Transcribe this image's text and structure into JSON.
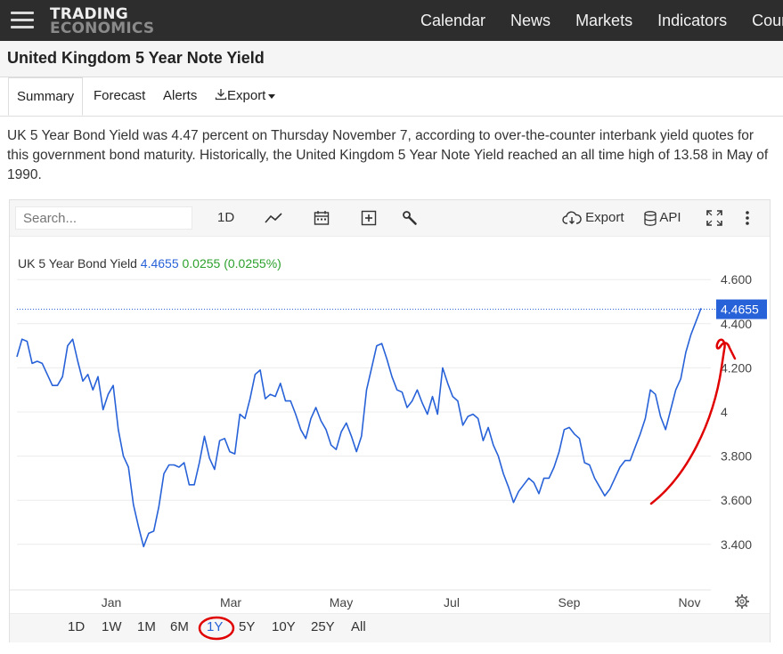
{
  "nav": {
    "logo_line1": "TRADING",
    "logo_line2": "ECONOMICS",
    "links": [
      "Calendar",
      "News",
      "Markets",
      "Indicators",
      "Countries"
    ]
  },
  "page": {
    "title": "United Kingdom 5 Year Note Yield",
    "tabs": [
      "Summary",
      "Forecast",
      "Alerts",
      "Export"
    ],
    "active_tab": "Summary",
    "summary": "UK 5 Year Bond Yield was 4.47 percent on Thursday November 7, according to over-the-counter interbank yield quotes for this government bond maturity. Historically, the United Kingdom 5 Year Note Yield reached an all time high of 13.58 in May of 1990."
  },
  "toolbar": {
    "search_placeholder": "Search...",
    "interval_label": "1D",
    "export_label": "Export",
    "api_label": "API",
    "icons": [
      "line-chart-icon",
      "calendar-icon",
      "plus-box-icon",
      "wrench-icon",
      "cloud-download-icon",
      "database-icon",
      "fullscreen-icon",
      "more-vertical-icon"
    ]
  },
  "series_label": {
    "name": "UK 5 Year Bond Yield",
    "value": "4.4655",
    "change": "0.0255 (0.0255%)"
  },
  "chart_data": {
    "type": "line",
    "title": "",
    "xlabel": "",
    "ylabel": "",
    "x_ticks": [
      "Jan",
      "Mar",
      "May",
      "Jul",
      "Sep",
      "Nov"
    ],
    "y_ticks": [
      "3.400",
      "3.600",
      "3.800",
      "4",
      "4.200",
      "4.400",
      "4.600"
    ],
    "ylim": [
      3.2,
      4.8
    ],
    "grid": true,
    "last_value_badge": "4.4655",
    "series": [
      {
        "name": "UK 5 Year Bond Yield",
        "color": "#2862d8",
        "values": [
          4.25,
          4.33,
          4.32,
          4.22,
          4.23,
          4.22,
          4.17,
          4.12,
          4.12,
          4.16,
          4.3,
          4.33,
          4.23,
          4.14,
          4.17,
          4.1,
          4.16,
          4.01,
          4.08,
          4.12,
          3.92,
          3.8,
          3.75,
          3.58,
          3.48,
          3.39,
          3.45,
          3.46,
          3.57,
          3.72,
          3.76,
          3.76,
          3.75,
          3.77,
          3.67,
          3.67,
          3.77,
          3.89,
          3.79,
          3.74,
          3.87,
          3.88,
          3.82,
          3.81,
          3.99,
          3.97,
          4.06,
          4.17,
          4.19,
          4.06,
          4.08,
          4.07,
          4.13,
          4.05,
          4.05,
          3.99,
          3.92,
          3.88,
          3.97,
          4.02,
          3.96,
          3.92,
          3.85,
          3.83,
          3.91,
          3.95,
          3.89,
          3.82,
          3.89,
          4.1,
          4.2,
          4.3,
          4.31,
          4.24,
          4.16,
          4.1,
          4.09,
          4.02,
          4.05,
          4.1,
          4.04,
          3.99,
          4.07,
          3.99,
          4.2,
          4.13,
          4.07,
          4.05,
          3.94,
          3.98,
          3.99,
          3.97,
          3.87,
          3.93,
          3.85,
          3.8,
          3.72,
          3.66,
          3.59,
          3.64,
          3.67,
          3.7,
          3.68,
          3.63,
          3.7,
          3.7,
          3.75,
          3.82,
          3.92,
          3.93,
          3.9,
          3.88,
          3.77,
          3.76,
          3.7,
          3.66,
          3.62,
          3.65,
          3.7,
          3.75,
          3.78,
          3.78,
          3.84,
          3.9,
          3.97,
          4.1,
          4.08,
          3.98,
          3.92,
          4.01,
          4.1,
          4.15,
          4.27,
          4.35,
          4.41,
          4.47
        ]
      }
    ]
  },
  "ranges": {
    "items": [
      "1D",
      "1W",
      "1M",
      "6M",
      "1Y",
      "5Y",
      "10Y",
      "25Y",
      "All"
    ],
    "active": "1Y"
  },
  "colors": {
    "line": "#2862d8",
    "annotation": "#e00000",
    "positive": "#2ca02c",
    "nav_bg": "#2d2d2d"
  }
}
